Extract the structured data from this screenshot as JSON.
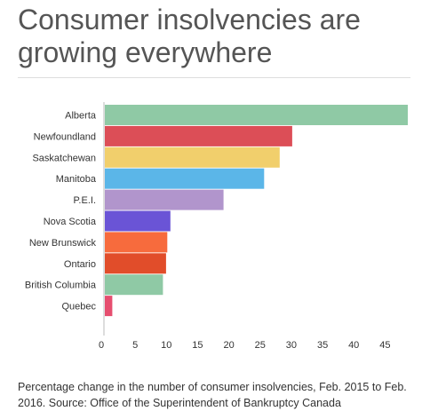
{
  "header": {
    "title": "Consumer insolvencies are growing everywhere"
  },
  "caption": "Percentage change in the number of consumer insolvencies, Feb. 2015 to Feb. 2016. Source: Office of the Superintendent of Bankruptcy Canada",
  "chart_data": {
    "type": "bar",
    "orientation": "horizontal",
    "title": "Consumer insolvencies are growing everywhere",
    "xlabel": "",
    "ylabel": "",
    "xlim": [
      0,
      49
    ],
    "xticks": [
      0,
      5,
      10,
      15,
      20,
      25,
      30,
      35,
      40,
      45
    ],
    "grid": false,
    "categories": [
      "Alberta",
      "Newfoundland",
      "Saskatchewan",
      "Manitoba",
      "P.E.I.",
      "Nova Scotia",
      "New Brunswick",
      "Ontario",
      "British Columbia",
      "Quebec"
    ],
    "values": [
      48.5,
      30,
      28,
      25.5,
      19,
      10.5,
      10,
      9.8,
      9.3,
      1.2
    ],
    "colors": [
      "#8fc9a5",
      "#dc4e57",
      "#f1cf6c",
      "#5bb6e8",
      "#b195cc",
      "#6a54d6",
      "#f76b3d",
      "#e14d2a",
      "#8fc9a5",
      "#e64e6f"
    ]
  }
}
